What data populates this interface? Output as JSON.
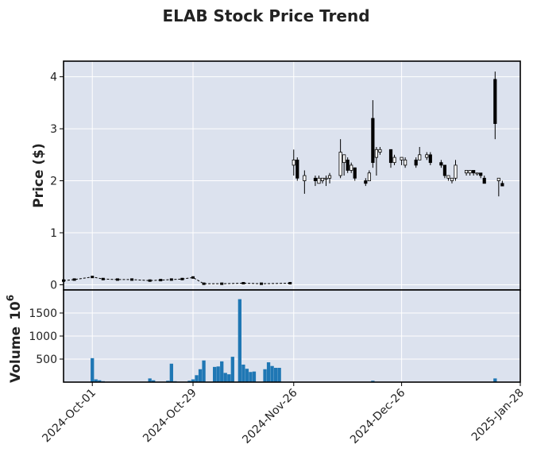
{
  "chart_data": {
    "type": "candlestick",
    "title": "ELAB Stock Price Trend",
    "price_ylabel": "Price ($)",
    "volume_ylabel": "Volume",
    "volume_multiplier": "10",
    "volume_multiplier_exp": "6",
    "price_ylim": [
      -0.1,
      4.3
    ],
    "price_yticks": [
      "0",
      "1",
      "2",
      "3",
      "4"
    ],
    "volume_ylim": [
      0,
      2000
    ],
    "volume_yticks": [
      "500",
      "1000",
      "1500"
    ],
    "xlim": [
      "2024-09-23",
      "2025-01-28"
    ],
    "xticks": [
      "2024-Oct-01",
      "2024-Oct-29",
      "2024-Nov-26",
      "2024-Dec-26",
      "2025-Jan-28"
    ],
    "grid": true,
    "colors": {
      "background": "#dce2ee",
      "grid": "#ffffff",
      "volume": "#1f77b4",
      "candle": "#000000"
    },
    "low_segment": [
      [
        "2024-09-23",
        0.08
      ],
      [
        "2024-09-26",
        0.1
      ],
      [
        "2024-10-01",
        0.15
      ],
      [
        "2024-10-04",
        0.11
      ],
      [
        "2024-10-08",
        0.1
      ],
      [
        "2024-10-12",
        0.1
      ],
      [
        "2024-10-17",
        0.08
      ],
      [
        "2024-10-20",
        0.09
      ],
      [
        "2024-10-23",
        0.1
      ],
      [
        "2024-10-26",
        0.11
      ],
      [
        "2024-10-29",
        0.14
      ],
      [
        "2024-11-01",
        0.02
      ],
      [
        "2024-11-06",
        0.02
      ],
      [
        "2024-11-12",
        0.03
      ],
      [
        "2024-11-17",
        0.02
      ],
      [
        "2024-11-25",
        0.03
      ]
    ],
    "candles": [
      {
        "d": "2024-11-26",
        "o": 2.3,
        "h": 2.6,
        "l": 2.1,
        "c": 2.4
      },
      {
        "d": "2024-11-27",
        "o": 2.4,
        "h": 2.45,
        "l": 2.0,
        "c": 2.05
      },
      {
        "d": "2024-11-29",
        "o": 2.0,
        "h": 2.2,
        "l": 1.75,
        "c": 2.1
      },
      {
        "d": "2024-12-02",
        "o": 2.05,
        "h": 2.1,
        "l": 1.9,
        "c": 2.0
      },
      {
        "d": "2024-12-03",
        "o": 1.95,
        "h": 2.1,
        "l": 1.95,
        "c": 2.05
      },
      {
        "d": "2024-12-04",
        "o": 2.0,
        "h": 2.05,
        "l": 1.95,
        "c": 2.05
      },
      {
        "d": "2024-12-05",
        "o": 2.05,
        "h": 2.1,
        "l": 1.9,
        "c": 2.05
      },
      {
        "d": "2024-12-06",
        "o": 2.05,
        "h": 2.15,
        "l": 1.95,
        "c": 2.1
      },
      {
        "d": "2024-12-09",
        "o": 2.1,
        "h": 2.8,
        "l": 2.05,
        "c": 2.55
      },
      {
        "d": "2024-12-10",
        "o": 2.35,
        "h": 2.5,
        "l": 2.1,
        "c": 2.5
      },
      {
        "d": "2024-12-11",
        "o": 2.4,
        "h": 2.45,
        "l": 2.15,
        "c": 2.2
      },
      {
        "d": "2024-12-12",
        "o": 2.2,
        "h": 2.35,
        "l": 2.15,
        "c": 2.3
      },
      {
        "d": "2024-12-13",
        "o": 2.25,
        "h": 2.25,
        "l": 2.0,
        "c": 2.05
      },
      {
        "d": "2024-12-16",
        "o": 2.0,
        "h": 2.05,
        "l": 1.9,
        "c": 1.95
      },
      {
        "d": "2024-12-17",
        "o": 2.0,
        "h": 2.2,
        "l": 2.0,
        "c": 2.15
      },
      {
        "d": "2024-12-18",
        "o": 3.2,
        "h": 3.55,
        "l": 2.25,
        "c": 2.35
      },
      {
        "d": "2024-12-19",
        "o": 2.45,
        "h": 2.65,
        "l": 2.1,
        "c": 2.6
      },
      {
        "d": "2024-12-20",
        "o": 2.55,
        "h": 2.65,
        "l": 2.5,
        "c": 2.6
      },
      {
        "d": "2024-12-23",
        "o": 2.6,
        "h": 2.6,
        "l": 2.25,
        "c": 2.35
      },
      {
        "d": "2024-12-24",
        "o": 2.35,
        "h": 2.5,
        "l": 2.3,
        "c": 2.45
      },
      {
        "d": "2024-12-26",
        "o": 2.4,
        "h": 2.45,
        "l": 2.3,
        "c": 2.45
      },
      {
        "d": "2024-12-27",
        "o": 2.3,
        "h": 2.45,
        "l": 2.25,
        "c": 2.4
      },
      {
        "d": "2024-12-30",
        "o": 2.4,
        "h": 2.45,
        "l": 2.25,
        "c": 2.3
      },
      {
        "d": "2024-12-31",
        "o": 2.4,
        "h": 2.65,
        "l": 2.4,
        "c": 2.5
      },
      {
        "d": "2025-01-02",
        "o": 2.45,
        "h": 2.55,
        "l": 2.4,
        "c": 2.5
      },
      {
        "d": "2025-01-03",
        "o": 2.5,
        "h": 2.55,
        "l": 2.3,
        "c": 2.35
      },
      {
        "d": "2025-01-06",
        "o": 2.35,
        "h": 2.4,
        "l": 2.25,
        "c": 2.3
      },
      {
        "d": "2025-01-07",
        "o": 2.3,
        "h": 2.3,
        "l": 2.05,
        "c": 2.1
      },
      {
        "d": "2025-01-08",
        "o": 2.05,
        "h": 2.1,
        "l": 2.0,
        "c": 2.1
      },
      {
        "d": "2025-01-09",
        "o": 2.0,
        "h": 2.05,
        "l": 1.95,
        "c": 2.05
      },
      {
        "d": "2025-01-10",
        "o": 2.05,
        "h": 2.4,
        "l": 2.0,
        "c": 2.3
      },
      {
        "d": "2025-01-13",
        "o": 2.15,
        "h": 2.2,
        "l": 2.1,
        "c": 2.2
      },
      {
        "d": "2025-01-14",
        "o": 2.15,
        "h": 2.2,
        "l": 2.1,
        "c": 2.2
      },
      {
        "d": "2025-01-15",
        "o": 2.2,
        "h": 2.2,
        "l": 2.1,
        "c": 2.15
      },
      {
        "d": "2025-01-16",
        "o": 2.15,
        "h": 2.15,
        "l": 2.1,
        "c": 2.15
      },
      {
        "d": "2025-01-17",
        "o": 2.15,
        "h": 2.15,
        "l": 2.05,
        "c": 2.1
      },
      {
        "d": "2025-01-18",
        "o": 2.05,
        "h": 2.1,
        "l": 1.95,
        "c": 1.95
      },
      {
        "d": "2025-01-21",
        "o": 3.95,
        "h": 4.1,
        "l": 2.8,
        "c": 3.1
      },
      {
        "d": "2025-01-22",
        "o": 2.0,
        "h": 2.05,
        "l": 1.7,
        "c": 2.05
      },
      {
        "d": "2025-01-23",
        "o": 1.95,
        "h": 2.0,
        "l": 1.9,
        "c": 1.9
      }
    ],
    "volume": [
      [
        "2024-10-01",
        520
      ],
      [
        "2024-10-02",
        60
      ],
      [
        "2024-10-03",
        40
      ],
      [
        "2024-10-04",
        20
      ],
      [
        "2024-10-17",
        80
      ],
      [
        "2024-10-18",
        40
      ],
      [
        "2024-10-22",
        30
      ],
      [
        "2024-10-23",
        400
      ],
      [
        "2024-10-24",
        20
      ],
      [
        "2024-10-28",
        30
      ],
      [
        "2024-10-29",
        60
      ],
      [
        "2024-10-30",
        150
      ],
      [
        "2024-10-31",
        280
      ],
      [
        "2024-11-01",
        470
      ],
      [
        "2024-11-04",
        330
      ],
      [
        "2024-11-05",
        340
      ],
      [
        "2024-11-06",
        450
      ],
      [
        "2024-11-07",
        200
      ],
      [
        "2024-11-08",
        170
      ],
      [
        "2024-11-09",
        550
      ],
      [
        "2024-11-11",
        1800
      ],
      [
        "2024-11-12",
        380
      ],
      [
        "2024-11-13",
        290
      ],
      [
        "2024-11-14",
        220
      ],
      [
        "2024-11-15",
        230
      ],
      [
        "2024-11-18",
        280
      ],
      [
        "2024-11-19",
        430
      ],
      [
        "2024-11-20",
        350
      ],
      [
        "2024-11-21",
        310
      ],
      [
        "2024-11-22",
        310
      ],
      [
        "2024-12-18",
        30
      ],
      [
        "2025-01-21",
        80
      ]
    ]
  }
}
